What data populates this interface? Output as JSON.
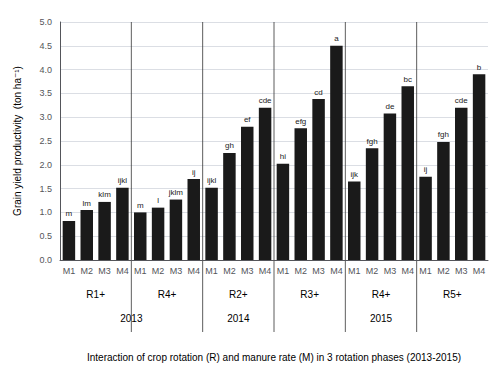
{
  "chart_data": {
    "type": "bar",
    "categories": [
      "M1",
      "M2",
      "M3",
      "M4",
      "M1",
      "M2",
      "M3",
      "M4",
      "M1",
      "M2",
      "M3",
      "M4",
      "M1",
      "M2",
      "M3",
      "M4",
      "M1",
      "M2",
      "M3",
      "M4",
      "M1",
      "M2",
      "M3",
      "M4"
    ],
    "values": [
      0.82,
      1.05,
      1.22,
      1.52,
      1.0,
      1.1,
      1.27,
      1.7,
      1.52,
      2.25,
      2.8,
      3.2,
      2.02,
      2.77,
      3.38,
      4.5,
      1.65,
      2.35,
      3.08,
      3.65,
      1.75,
      2.48,
      3.2,
      3.9
    ],
    "annotations": [
      "m",
      "lm",
      "klm",
      "ijkl",
      "m",
      "l",
      "jklm",
      "ij",
      "ijkl",
      "gh",
      "ef",
      "cde",
      "hi",
      "efg",
      "cd",
      "a",
      "ijk",
      "fgh",
      "de",
      "bc",
      "ij",
      "fgh",
      "cde",
      "b"
    ],
    "groups": [
      "R1+",
      "R1+",
      "R1+",
      "R1+",
      "R4+",
      "R4+",
      "R4+",
      "R4+",
      "R2+",
      "R2+",
      "R2+",
      "R2+",
      "R3+",
      "R3+",
      "R3+",
      "R3+",
      "R4+",
      "R4+",
      "R4+",
      "R4+",
      "R5+",
      "R5+",
      "R5+",
      "R5+"
    ],
    "years": [
      "2013",
      "2013",
      "2013",
      "2013",
      "2013",
      "2013",
      "2013",
      "2013",
      "2014",
      "2014",
      "2014",
      "2014",
      "2015",
      "2015",
      "2015",
      "2015",
      "2015",
      "2015",
      "2015",
      "2015",
      "2015",
      "2015",
      "2015",
      "2015"
    ],
    "color": "#1a1a1a",
    "ylabel": "Grain yield productivity  (ton ha⁻¹)",
    "xlabel": "Interaction of crop rotation (R) and manure rate (M) in 3 rotation phases (2013-2015)",
    "ylim": [
      0,
      5.0
    ],
    "yticks": [
      {
        "value": 0.0,
        "label": "0.0"
      },
      0.5,
      {
        "value": 1.0,
        "label": "1.0"
      },
      1.5,
      {
        "value": 2.0,
        "label": "2.0"
      },
      2.5,
      {
        "value": 3.0,
        "label": "3.0"
      },
      3.5,
      {
        "value": 4.0,
        "label": "4.0"
      },
      4.5,
      {
        "value": 5.0,
        "label": "5.0"
      }
    ],
    "grid": true
  }
}
